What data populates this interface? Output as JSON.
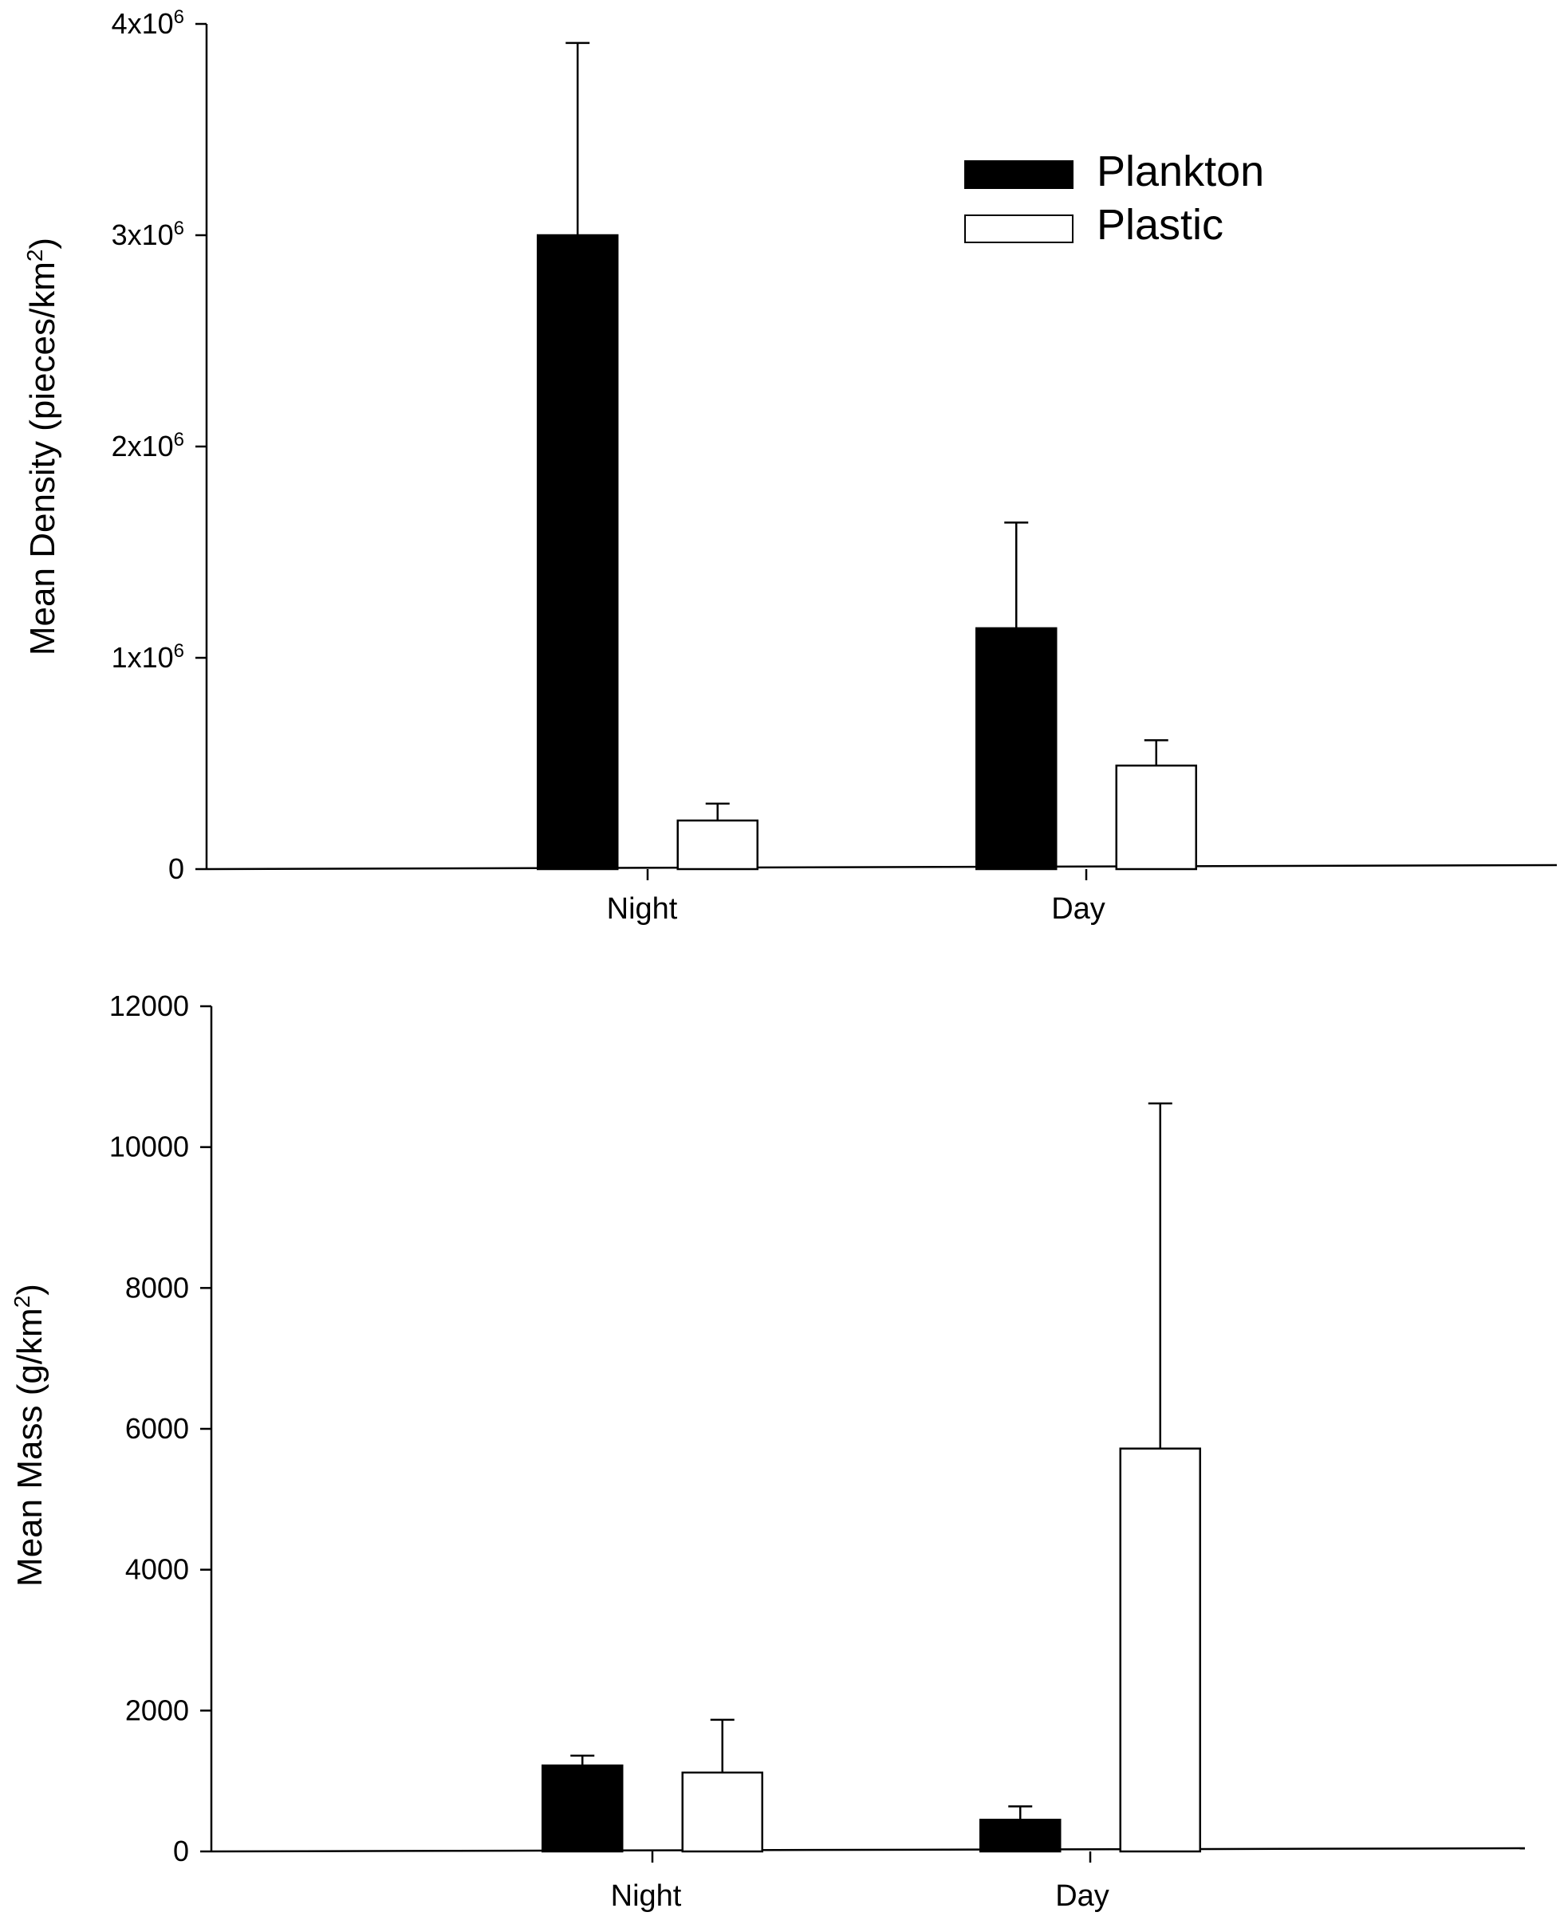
{
  "chart_data": [
    {
      "type": "bar",
      "categories": [
        "Night",
        "Day"
      ],
      "series": [
        {
          "name": "Plankton",
          "values": [
            3000000,
            1140000
          ],
          "errors": [
            910000,
            500000
          ],
          "color": "#000000"
        },
        {
          "name": "Plastic",
          "values": [
            230000,
            490000
          ],
          "errors": [
            80000,
            120000
          ],
          "color": "#ffffff"
        }
      ],
      "ylabel": "Mean Density (pieces/km",
      "ylabel_sup": "2",
      "ylabel_tail": ")",
      "ylim": [
        0,
        4000000
      ],
      "yticks": [
        {
          "value": 4000000,
          "base": "4x10",
          "exp": "6"
        },
        {
          "value": 3000000,
          "base": "3x10",
          "exp": "6"
        },
        {
          "value": 2000000,
          "base": "2x10",
          "exp": "6"
        },
        {
          "value": 1000000,
          "base": "1x10",
          "exp": "6"
        },
        {
          "value": 0,
          "base": "0",
          "exp": ""
        }
      ],
      "legend": {
        "position": "top-right",
        "entries": [
          "Plankton",
          "Plastic"
        ]
      },
      "grid": false
    },
    {
      "type": "bar",
      "categories": [
        "Night",
        "Day"
      ],
      "series": [
        {
          "name": "Plankton",
          "values": [
            1220,
            450
          ],
          "errors": [
            140,
            190
          ],
          "color": "#000000"
        },
        {
          "name": "Plastic",
          "values": [
            1120,
            5720
          ],
          "errors": [
            750,
            4900
          ],
          "color": "#ffffff"
        }
      ],
      "ylabel": "Mean Mass (g/km",
      "ylabel_sup": "2",
      "ylabel_tail": ")",
      "ylim": [
        0,
        12000
      ],
      "yticks": [
        {
          "value": 12000,
          "base": "12000",
          "exp": ""
        },
        {
          "value": 10000,
          "base": "10000",
          "exp": ""
        },
        {
          "value": 8000,
          "base": "8000",
          "exp": ""
        },
        {
          "value": 6000,
          "base": "6000",
          "exp": ""
        },
        {
          "value": 4000,
          "base": "4000",
          "exp": ""
        },
        {
          "value": 2000,
          "base": "2000",
          "exp": ""
        },
        {
          "value": 0,
          "base": "0",
          "exp": ""
        }
      ],
      "grid": false
    }
  ]
}
